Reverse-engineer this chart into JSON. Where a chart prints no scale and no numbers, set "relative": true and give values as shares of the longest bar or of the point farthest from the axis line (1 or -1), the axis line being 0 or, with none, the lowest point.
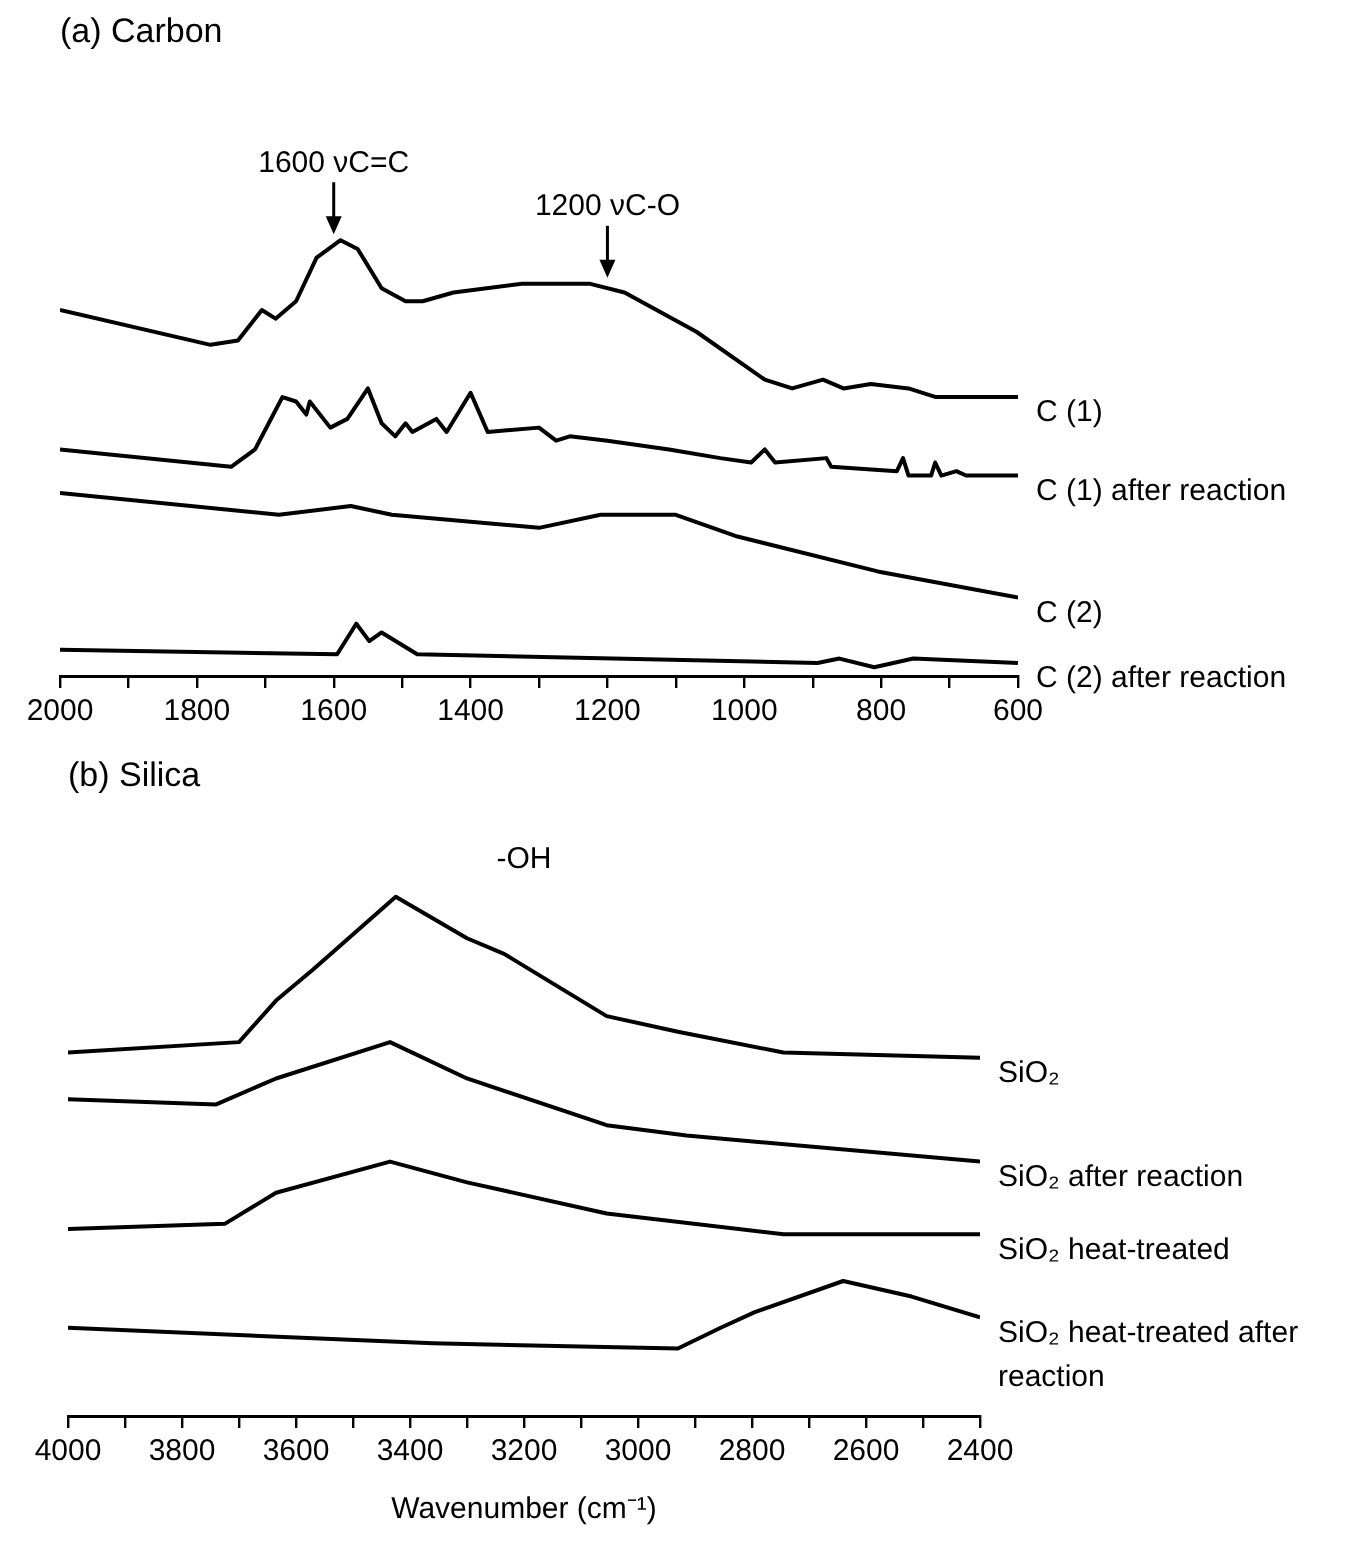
{
  "chart_data": [
    {
      "type": "line",
      "title": "(a) Carbon",
      "relative": true,
      "xlim": [
        2000,
        600
      ],
      "xticks": [
        2000,
        {
          "value": 1900,
          "label": null
        },
        1800,
        {
          "value": 1700,
          "label": null
        },
        1600,
        {
          "value": 1500,
          "label": null
        },
        1400,
        {
          "value": 1300,
          "label": null
        },
        1200,
        {
          "value": 1100,
          "label": null
        },
        1000,
        {
          "value": 900,
          "label": null
        },
        800,
        {
          "value": 700,
          "label": null
        },
        600
      ],
      "tick_labels": "x",
      "grid": false,
      "annotations": [
        {
          "text": "1600 νC=C",
          "x": 1600,
          "y": 1.0
        },
        {
          "text": "1200 νC-O",
          "x": 1200,
          "y": 0.9
        }
      ],
      "series": [
        {
          "name": "C (1)",
          "color": "#000000",
          "x": [
            2000,
            1780,
            1740,
            1705,
            1685,
            1655,
            1625,
            1590,
            1565,
            1530,
            1495,
            1470,
            1425,
            1325,
            1225,
            1175,
            1070,
            970,
            930,
            885,
            855,
            815,
            760,
            720,
            600
          ],
          "values": [
            0.84,
            0.76,
            0.77,
            0.84,
            0.82,
            0.86,
            0.96,
            1.0,
            0.98,
            0.89,
            0.86,
            0.86,
            0.88,
            0.9,
            0.9,
            0.88,
            0.79,
            0.68,
            0.66,
            0.68,
            0.66,
            0.67,
            0.66,
            0.64,
            0.64
          ]
        },
        {
          "name": "C (1) after reaction",
          "color": "#000000",
          "x": [
            2000,
            1750,
            1715,
            1695,
            1675,
            1655,
            1640,
            1635,
            1605,
            1580,
            1550,
            1530,
            1510,
            1495,
            1485,
            1450,
            1435,
            1400,
            1375,
            1300,
            1275,
            1255,
            1200,
            1110,
            1035,
            990,
            970,
            955,
            880,
            873,
            777,
            768,
            760,
            727,
            721,
            712,
            690,
            676,
            600
          ],
          "values": [
            0.52,
            0.48,
            0.52,
            0.58,
            0.64,
            0.63,
            0.6,
            0.63,
            0.57,
            0.59,
            0.66,
            0.58,
            0.55,
            0.58,
            0.56,
            0.59,
            0.56,
            0.65,
            0.56,
            0.57,
            0.54,
            0.55,
            0.54,
            0.52,
            0.5,
            0.49,
            0.52,
            0.49,
            0.5,
            0.48,
            0.47,
            0.5,
            0.46,
            0.46,
            0.49,
            0.46,
            0.47,
            0.46,
            0.46
          ]
        },
        {
          "name": "C (2)",
          "color": "#000000",
          "x": [
            2000,
            1680,
            1575,
            1515,
            1300,
            1210,
            1100,
            1010,
            805,
            600
          ],
          "values": [
            0.42,
            0.37,
            0.39,
            0.37,
            0.34,
            0.37,
            0.37,
            0.32,
            0.24,
            0.18
          ]
        },
        {
          "name": "C (2) after reaction",
          "color": "#000000",
          "x": [
            2000,
            1595,
            1567,
            1548,
            1530,
            1478,
            893,
            861,
            810,
            753,
            600
          ],
          "values": [
            0.06,
            0.05,
            0.12,
            0.08,
            0.1,
            0.05,
            0.03,
            0.04,
            0.02,
            0.04,
            0.03
          ]
        }
      ]
    },
    {
      "type": "line",
      "title": "(b) Silica",
      "relative": true,
      "xlabel": "Wavenumber (cm⁻¹)",
      "xlim": [
        4000,
        2400
      ],
      "xticks": [
        4000,
        {
          "value": 3900,
          "label": null
        },
        3800,
        {
          "value": 3700,
          "label": null
        },
        3600,
        {
          "value": 3500,
          "label": null
        },
        3400,
        {
          "value": 3300,
          "label": null
        },
        3200,
        {
          "value": 3100,
          "label": null
        },
        3000,
        {
          "value": 2900,
          "label": null
        },
        2800,
        {
          "value": 2700,
          "label": null
        },
        2600,
        {
          "value": 2500,
          "label": null
        },
        2400
      ],
      "tick_labels": "x",
      "grid": false,
      "annotations": [
        "-OH"
      ],
      "series": [
        {
          "name": "SiO₂",
          "color": "#000000",
          "x": [
            4000,
            3700,
            3635,
            3570,
            3425,
            3300,
            3235,
            3055,
            2930,
            2745,
            2400
          ],
          "values": [
            0.7,
            0.72,
            0.8,
            0.86,
            1.0,
            0.92,
            0.89,
            0.77,
            0.74,
            0.7,
            0.69
          ]
        },
        {
          "name": "SiO₂ after reaction",
          "color": "#000000",
          "x": [
            4000,
            3740,
            3635,
            3435,
            3300,
            3055,
            2915,
            2400
          ],
          "values": [
            0.61,
            0.6,
            0.65,
            0.72,
            0.65,
            0.56,
            0.54,
            0.49
          ]
        },
        {
          "name": "SiO₂ heat-treated",
          "color": "#000000",
          "x": [
            4000,
            3725,
            3665,
            3635,
            3435,
            3300,
            3055,
            2745,
            2400
          ],
          "values": [
            0.36,
            0.37,
            0.41,
            0.43,
            0.49,
            0.45,
            0.39,
            0.35,
            0.35
          ]
        },
        {
          "name": "SiO₂ heat-treated after reaction",
          "color": "#000000",
          "x": [
            4000,
            3360,
            2930,
            2855,
            2795,
            2640,
            2520,
            2400
          ],
          "values": [
            0.17,
            0.14,
            0.13,
            0.17,
            0.2,
            0.26,
            0.23,
            0.19
          ]
        }
      ]
    }
  ]
}
